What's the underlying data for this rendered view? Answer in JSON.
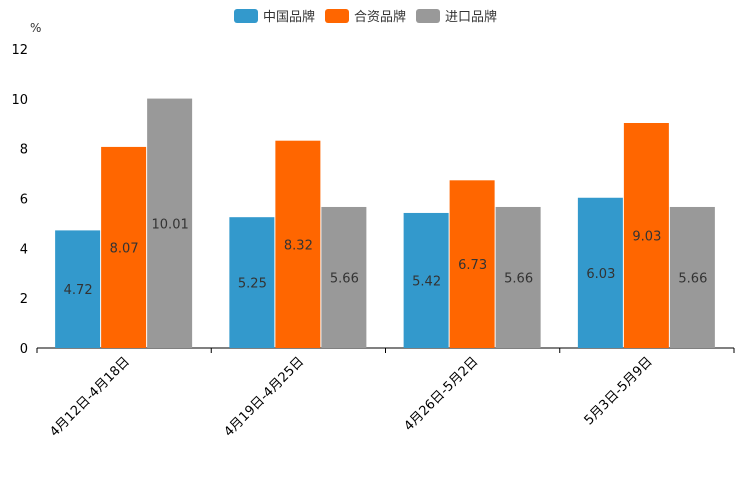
{
  "chart_data": {
    "type": "bar",
    "unit": "%",
    "categories": [
      "4月12日-4月18日",
      "4月19日-4月25日",
      "4月26日-5月2日",
      "5月3日-5月9日"
    ],
    "series": [
      {
        "name": "中国品牌",
        "color": "#3399cc",
        "values": [
          4.72,
          5.25,
          5.42,
          6.03
        ],
        "labels": [
          "4.72",
          "5.25",
          "5.42",
          "6.03"
        ]
      },
      {
        "name": "合资品牌",
        "color": "#ff6600",
        "values": [
          8.07,
          8.32,
          6.73,
          9.03
        ],
        "labels": [
          "8.07",
          "8.32",
          "6.73",
          "9.03"
        ]
      },
      {
        "name": "进口品牌",
        "color": "#999999",
        "values": [
          10.01,
          5.66,
          5.66,
          5.66
        ],
        "labels": [
          "10.01",
          "5.66",
          "5.66",
          "5.66"
        ]
      }
    ],
    "yticks": [
      "0",
      "2",
      "4",
      "6",
      "8",
      "10",
      "12"
    ],
    "ylim": [
      0,
      12
    ],
    "legend_position": "top-center",
    "grid": false
  }
}
